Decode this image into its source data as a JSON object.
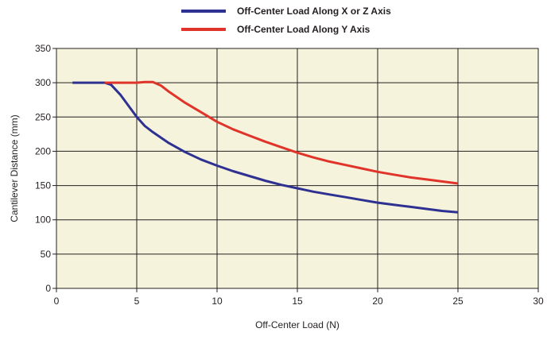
{
  "chart_data": {
    "type": "line",
    "title": "",
    "xlabel": "Off-Center Load (N)",
    "ylabel": "Cantilever Distance (mm)",
    "xlim": [
      0,
      30
    ],
    "ylim": [
      0,
      350
    ],
    "xticks": [
      0,
      5,
      10,
      15,
      20,
      25,
      30
    ],
    "yticks": [
      0,
      50,
      100,
      150,
      200,
      250,
      300,
      350
    ],
    "grid": true,
    "legend_position": "top-center",
    "plot_background": "#f5f3dc",
    "series": [
      {
        "name": "Off-Center Load Along X or Z Axis",
        "color": "#2e3192",
        "points": [
          [
            1,
            300
          ],
          [
            2,
            300
          ],
          [
            3,
            300
          ],
          [
            3.4,
            297
          ],
          [
            4,
            282
          ],
          [
            4.5,
            266
          ],
          [
            5,
            250
          ],
          [
            5.5,
            237
          ],
          [
            6,
            228
          ],
          [
            7,
            212
          ],
          [
            8,
            199
          ],
          [
            9,
            188
          ],
          [
            10,
            179
          ],
          [
            11,
            171
          ],
          [
            12,
            164
          ],
          [
            13,
            157
          ],
          [
            14,
            151
          ],
          [
            15,
            146
          ],
          [
            16,
            141
          ],
          [
            17,
            137
          ],
          [
            18,
            133
          ],
          [
            19,
            129
          ],
          [
            20,
            125
          ],
          [
            21,
            122
          ],
          [
            22,
            119
          ],
          [
            23,
            116
          ],
          [
            24,
            113
          ],
          [
            25,
            111
          ]
        ]
      },
      {
        "name": "Off-Center Load Along Y Axis",
        "color": "#e0342a",
        "points": [
          [
            3,
            300
          ],
          [
            4,
            300
          ],
          [
            5,
            300
          ],
          [
            5.5,
            301
          ],
          [
            6,
            301
          ],
          [
            6.5,
            296
          ],
          [
            7,
            287
          ],
          [
            8,
            271
          ],
          [
            9,
            257
          ],
          [
            10,
            243
          ],
          [
            11,
            232
          ],
          [
            12,
            223
          ],
          [
            13,
            214
          ],
          [
            14,
            206
          ],
          [
            15,
            198
          ],
          [
            16,
            191
          ],
          [
            17,
            185
          ],
          [
            18,
            180
          ],
          [
            19,
            175
          ],
          [
            20,
            170
          ],
          [
            21,
            166
          ],
          [
            22,
            162
          ],
          [
            23,
            159
          ],
          [
            24,
            156
          ],
          [
            25,
            153
          ]
        ]
      }
    ]
  }
}
